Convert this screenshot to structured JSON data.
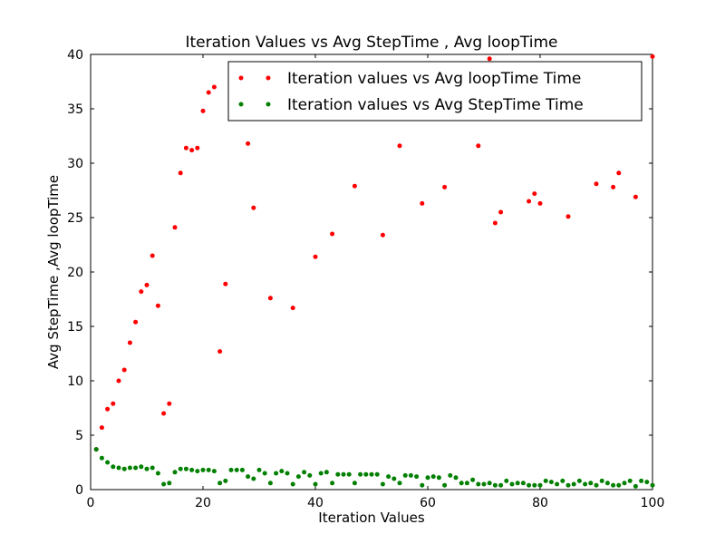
{
  "chart_data": {
    "type": "scatter",
    "title": "Iteration Values vs Avg StepTime , Avg loopTime",
    "xlabel": "Iteration Values",
    "ylabel": "Avg StepTime ,Avg loopTime",
    "xlim": [
      0,
      100
    ],
    "ylim": [
      0,
      40
    ],
    "xticks": [
      0,
      20,
      40,
      60,
      80,
      100
    ],
    "yticks": [
      0,
      5,
      10,
      15,
      20,
      25,
      30,
      35,
      40
    ],
    "grid": false,
    "legend_position": "top-right",
    "series": [
      {
        "name": "Iteration values vs Avg loopTime Time",
        "color": "#ff0000",
        "points": [
          [
            1,
            3.7
          ],
          [
            2,
            5.7
          ],
          [
            3,
            7.4
          ],
          [
            4,
            7.9
          ],
          [
            5,
            10.0
          ],
          [
            6,
            11.0
          ],
          [
            7,
            13.5
          ],
          [
            8,
            15.4
          ],
          [
            9,
            18.2
          ],
          [
            10,
            18.8
          ],
          [
            11,
            21.5
          ],
          [
            12,
            16.9
          ],
          [
            13,
            7.0
          ],
          [
            14,
            7.9
          ],
          [
            15,
            24.1
          ],
          [
            16,
            29.1
          ],
          [
            17,
            31.4
          ],
          [
            18,
            31.2
          ],
          [
            19,
            31.4
          ],
          [
            20,
            34.8
          ],
          [
            21,
            36.5
          ],
          [
            22,
            37.0
          ],
          [
            23,
            12.7
          ],
          [
            24,
            18.9
          ],
          [
            28,
            31.8
          ],
          [
            29,
            25.9
          ],
          [
            32,
            17.6
          ],
          [
            36,
            16.7
          ],
          [
            40,
            21.4
          ],
          [
            43,
            23.5
          ],
          [
            47,
            27.9
          ],
          [
            52,
            23.4
          ],
          [
            55,
            31.6
          ],
          [
            59,
            26.3
          ],
          [
            63,
            27.8
          ],
          [
            69,
            31.6
          ],
          [
            71,
            39.6
          ],
          [
            72,
            24.5
          ],
          [
            73,
            25.5
          ],
          [
            78,
            26.5
          ],
          [
            79,
            27.2
          ],
          [
            80,
            26.3
          ],
          [
            85,
            25.1
          ],
          [
            90,
            28.1
          ],
          [
            93,
            27.8
          ],
          [
            94,
            29.1
          ],
          [
            97,
            26.9
          ],
          [
            100,
            39.8
          ]
        ]
      },
      {
        "name": "Iteration values vs Avg StepTime Time",
        "color": "#008000",
        "points": [
          [
            1,
            3.7
          ],
          [
            2,
            2.9
          ],
          [
            3,
            2.5
          ],
          [
            4,
            2.1
          ],
          [
            5,
            2.0
          ],
          [
            6,
            1.9
          ],
          [
            7,
            2.0
          ],
          [
            8,
            2.0
          ],
          [
            9,
            2.1
          ],
          [
            10,
            1.9
          ],
          [
            11,
            2.0
          ],
          [
            12,
            1.5
          ],
          [
            13,
            0.5
          ],
          [
            14,
            0.6
          ],
          [
            15,
            1.6
          ],
          [
            16,
            1.9
          ],
          [
            17,
            1.9
          ],
          [
            18,
            1.8
          ],
          [
            19,
            1.7
          ],
          [
            20,
            1.8
          ],
          [
            21,
            1.8
          ],
          [
            22,
            1.7
          ],
          [
            23,
            0.6
          ],
          [
            24,
            0.8
          ],
          [
            25,
            1.8
          ],
          [
            26,
            1.8
          ],
          [
            27,
            1.8
          ],
          [
            28,
            1.2
          ],
          [
            29,
            1.0
          ],
          [
            30,
            1.8
          ],
          [
            31,
            1.5
          ],
          [
            32,
            0.6
          ],
          [
            33,
            1.5
          ],
          [
            34,
            1.7
          ],
          [
            35,
            1.5
          ],
          [
            36,
            0.5
          ],
          [
            37,
            1.2
          ],
          [
            38,
            1.6
          ],
          [
            39,
            1.3
          ],
          [
            40,
            0.5
          ],
          [
            41,
            1.5
          ],
          [
            42,
            1.6
          ],
          [
            43,
            0.6
          ],
          [
            44,
            1.4
          ],
          [
            45,
            1.4
          ],
          [
            46,
            1.4
          ],
          [
            47,
            0.6
          ],
          [
            48,
            1.4
          ],
          [
            49,
            1.4
          ],
          [
            50,
            1.4
          ],
          [
            51,
            1.4
          ],
          [
            52,
            0.5
          ],
          [
            53,
            1.2
          ],
          [
            54,
            1.0
          ],
          [
            55,
            0.6
          ],
          [
            56,
            1.3
          ],
          [
            57,
            1.3
          ],
          [
            58,
            1.2
          ],
          [
            59,
            0.4
          ],
          [
            60,
            1.1
          ],
          [
            61,
            1.2
          ],
          [
            62,
            1.1
          ],
          [
            63,
            0.4
          ],
          [
            64,
            1.3
          ],
          [
            65,
            1.1
          ],
          [
            66,
            0.6
          ],
          [
            67,
            0.6
          ],
          [
            68,
            0.9
          ],
          [
            69,
            0.5
          ],
          [
            70,
            0.5
          ],
          [
            71,
            0.6
          ],
          [
            72,
            0.4
          ],
          [
            73,
            0.4
          ],
          [
            74,
            0.8
          ],
          [
            75,
            0.5
          ],
          [
            76,
            0.6
          ],
          [
            77,
            0.6
          ],
          [
            78,
            0.4
          ],
          [
            79,
            0.4
          ],
          [
            80,
            0.4
          ],
          [
            81,
            0.8
          ],
          [
            82,
            0.7
          ],
          [
            83,
            0.5
          ],
          [
            84,
            0.8
          ],
          [
            85,
            0.4
          ],
          [
            86,
            0.5
          ],
          [
            87,
            0.8
          ],
          [
            88,
            0.5
          ],
          [
            89,
            0.6
          ],
          [
            90,
            0.4
          ],
          [
            91,
            0.8
          ],
          [
            92,
            0.6
          ],
          [
            93,
            0.4
          ],
          [
            94,
            0.4
          ],
          [
            95,
            0.6
          ],
          [
            96,
            0.8
          ],
          [
            97,
            0.3
          ],
          [
            98,
            0.8
          ],
          [
            99,
            0.7
          ],
          [
            100,
            0.4
          ]
        ]
      }
    ]
  }
}
